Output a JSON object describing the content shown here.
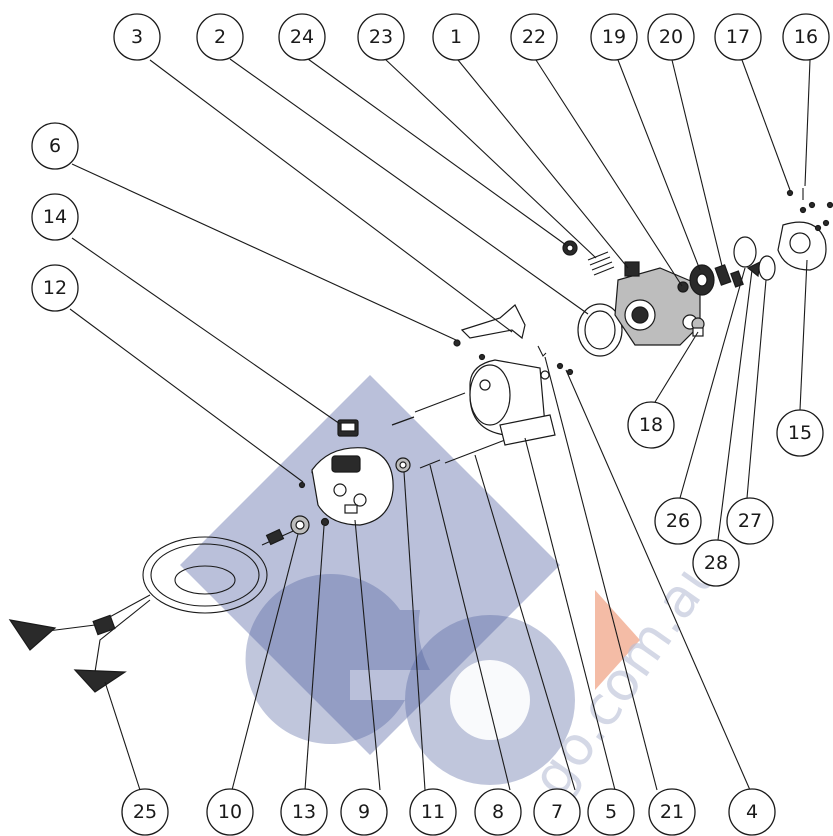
{
  "colors": {
    "watermark_blue": "#5a6aa6",
    "watermark_red": "#f0a080",
    "ink": "#1a1a1a"
  },
  "watermark": {
    "text": "go.com.au"
  },
  "callouts": [
    {
      "label": "3"
    },
    {
      "label": "2"
    },
    {
      "label": "24"
    },
    {
      "label": "23"
    },
    {
      "label": "1"
    },
    {
      "label": "22"
    },
    {
      "label": "19"
    },
    {
      "label": "20"
    },
    {
      "label": "17"
    },
    {
      "label": "16"
    },
    {
      "label": "6"
    },
    {
      "label": "14"
    },
    {
      "label": "12"
    },
    {
      "label": "18"
    },
    {
      "label": "15"
    },
    {
      "label": "26"
    },
    {
      "label": "27"
    },
    {
      "label": "28"
    },
    {
      "label": "25"
    },
    {
      "label": "10"
    },
    {
      "label": "13"
    },
    {
      "label": "9"
    },
    {
      "label": "11"
    },
    {
      "label": "8"
    },
    {
      "label": "7"
    },
    {
      "label": "5"
    },
    {
      "label": "21"
    },
    {
      "label": "4"
    }
  ]
}
